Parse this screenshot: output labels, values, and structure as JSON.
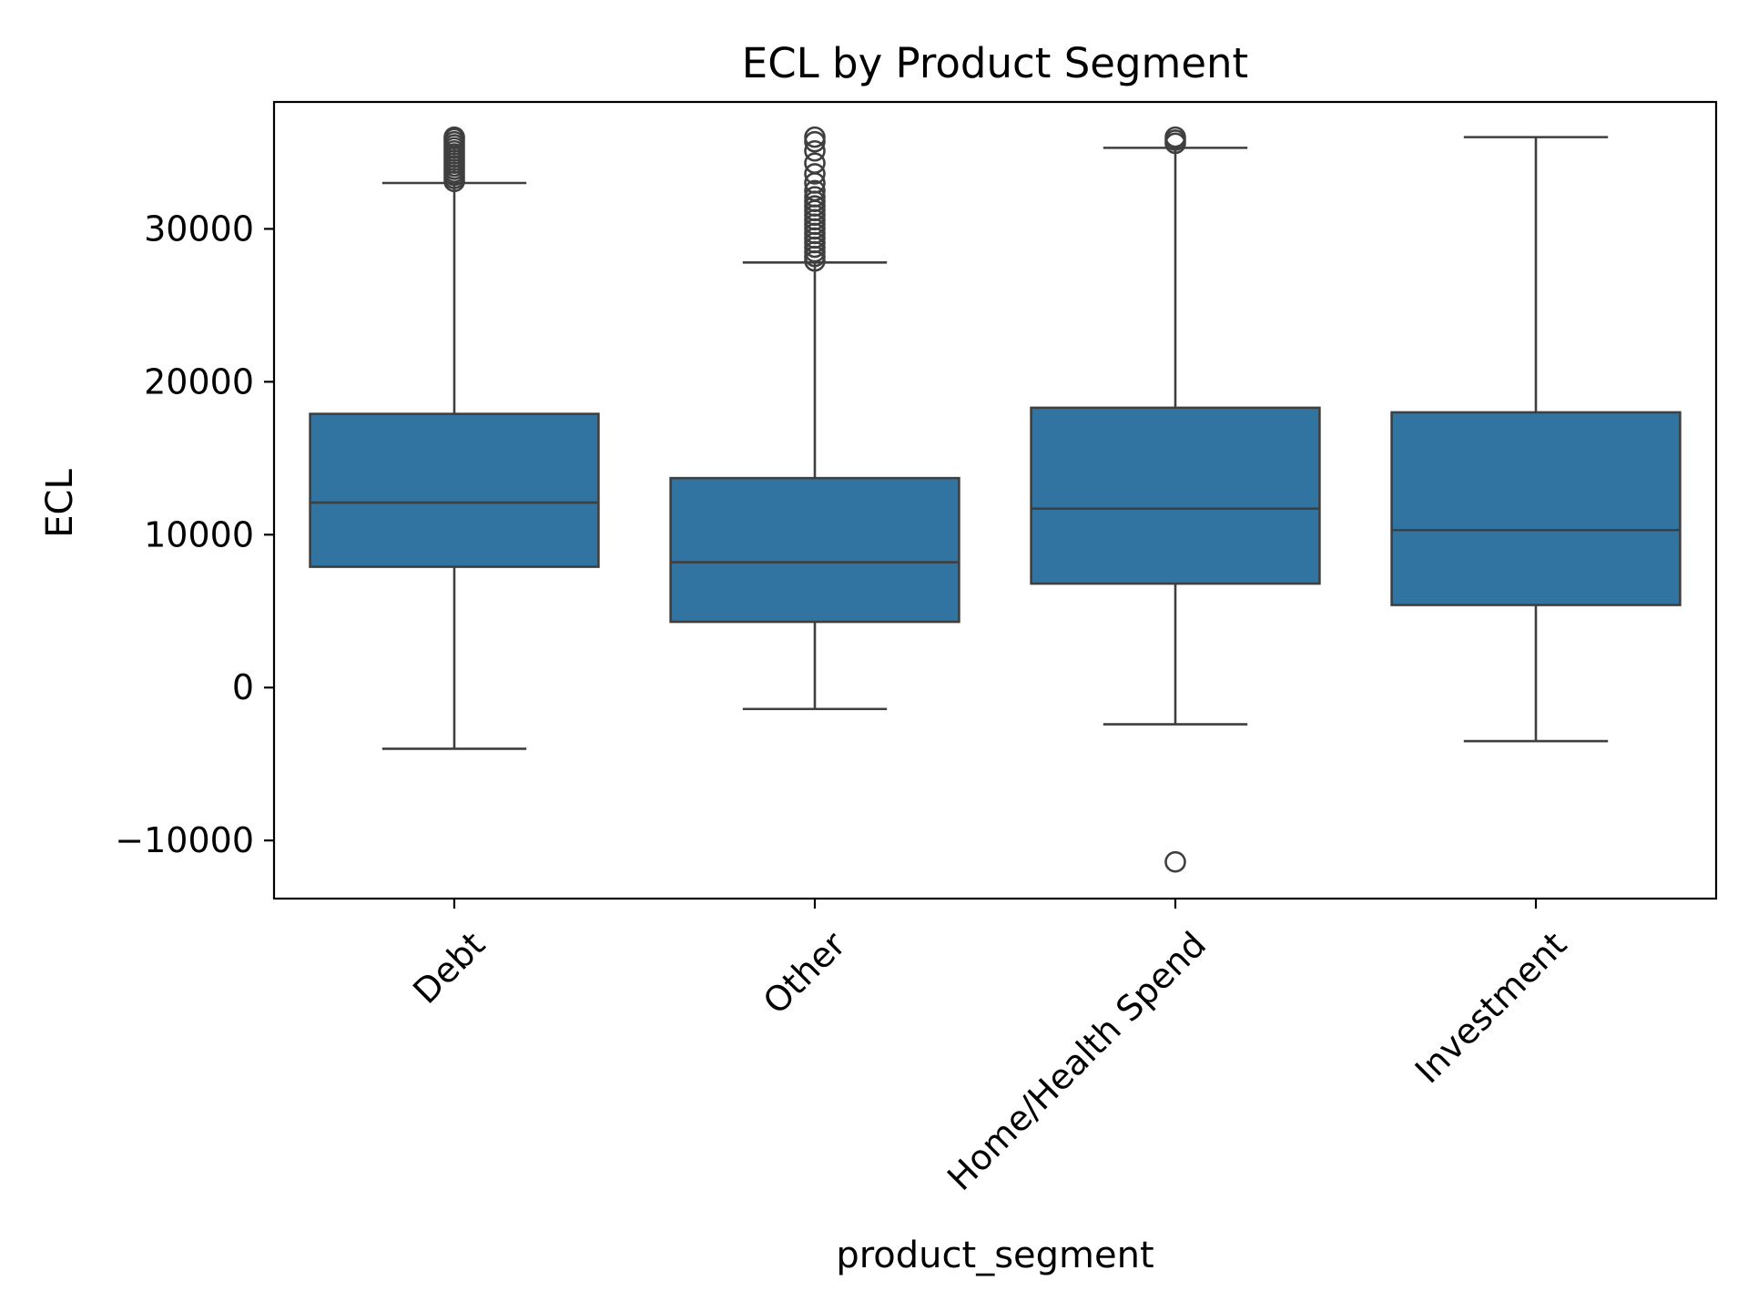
{
  "chart_data": {
    "type": "box",
    "title": "ECL by Product Segment",
    "xlabel": "product_segment",
    "ylabel": "ECL",
    "ylim": [
      -13800,
      38300
    ],
    "yticks": [
      -10000,
      0,
      10000,
      20000,
      30000
    ],
    "ytick_labels": [
      "−10000",
      "0",
      "10000",
      "20000",
      "30000"
    ],
    "grid": false,
    "legend": "none",
    "colors": {
      "box_fill": "#3274a1",
      "line": "#3f3f3f",
      "axis": "#000000"
    },
    "categories": [
      "Debt",
      "Other",
      "Home/Health Spend",
      "Investment"
    ],
    "boxes": [
      {
        "category": "Debt",
        "whisker_low": -4000,
        "q1": 7900,
        "median": 12100,
        "q3": 17900,
        "whisker_high": 33000,
        "outliers": [
          33100,
          33300,
          33500,
          33700,
          33900,
          34100,
          34300,
          34500,
          34700,
          34900,
          35100,
          35300,
          35500,
          35700,
          35900,
          36000
        ]
      },
      {
        "category": "Other",
        "whisker_low": -1400,
        "q1": 4300,
        "median": 8200,
        "q3": 13700,
        "whisker_high": 27800,
        "outliers": [
          27900,
          28200,
          28500,
          28800,
          29100,
          29400,
          29700,
          30000,
          30300,
          30600,
          30900,
          31200,
          31500,
          31800,
          32100,
          32500,
          33000,
          33600,
          34300,
          35100,
          35700,
          36000
        ]
      },
      {
        "category": "Home/Health Spend",
        "whisker_low": -2400,
        "q1": 6800,
        "median": 11700,
        "q3": 18300,
        "whisker_high": 35300,
        "outliers": [
          -11400,
          35600,
          35800,
          36000
        ]
      },
      {
        "category": "Investment",
        "whisker_low": -3500,
        "q1": 5400,
        "median": 10300,
        "q3": 18000,
        "whisker_high": 36000,
        "outliers": []
      }
    ]
  }
}
